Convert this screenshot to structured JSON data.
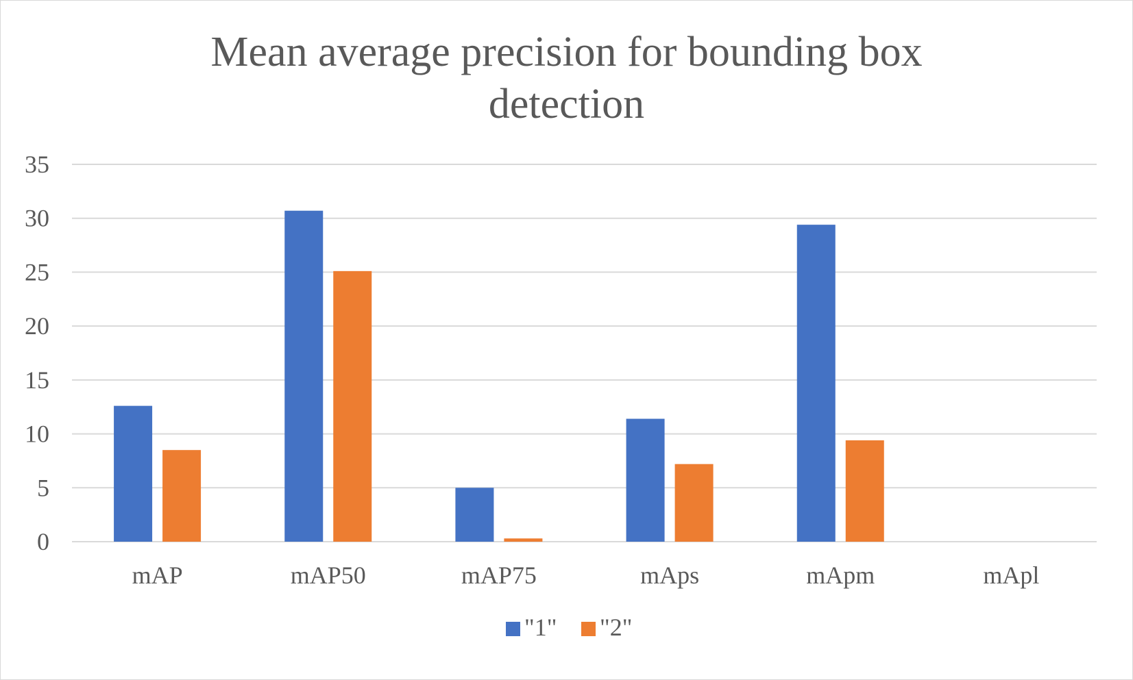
{
  "chart_data": {
    "type": "bar",
    "title_lines": [
      "Mean average precision for bounding box",
      "detection"
    ],
    "categories": [
      "mAP",
      "mAP50",
      "mAP75",
      "mAps",
      "mApm",
      "mApl"
    ],
    "series": [
      {
        "name": "\"1\"",
        "color": "#4472C4",
        "values": [
          12.6,
          30.7,
          5.0,
          11.4,
          29.4,
          0
        ]
      },
      {
        "name": "\"2\"",
        "color": "#ED7D31",
        "values": [
          8.5,
          25.1,
          0.3,
          7.2,
          9.4,
          0
        ]
      }
    ],
    "ylim": [
      0,
      35
    ],
    "yticks": [
      0,
      5,
      10,
      15,
      20,
      25,
      30,
      35
    ],
    "grid": true,
    "legend": "bottom"
  }
}
